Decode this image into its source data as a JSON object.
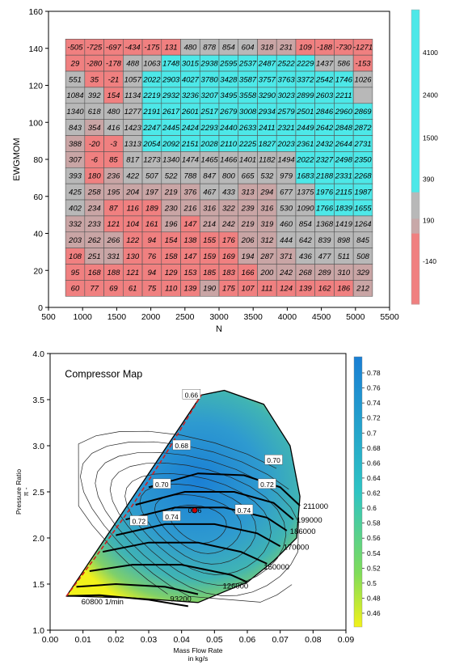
{
  "chart_data": [
    {
      "type": "heatmap",
      "xlabel": "N",
      "ylabel": "EWGMOM",
      "x_ticks": [
        "500",
        "1000",
        "1500",
        "2000",
        "2500",
        "3000",
        "3500",
        "4000",
        "4500",
        "5000",
        "5500"
      ],
      "y_ticks": [
        "0",
        "20",
        "40",
        "60",
        "80",
        "100",
        "120",
        "140",
        "160"
      ],
      "xlim": [
        500,
        5500
      ],
      "ylim": [
        0,
        160
      ],
      "grid_x_range": [
        750,
        5250
      ],
      "grid_y_range": [
        6,
        145
      ],
      "rows": [
        [
          -505,
          -725,
          -697,
          -434,
          -175,
          131,
          480,
          878,
          854,
          604,
          318,
          231,
          109,
          -188,
          -730,
          -1271
        ],
        [
          29,
          -280,
          -178,
          488,
          1063,
          1748,
          3015,
          2938,
          2595,
          2537,
          2487,
          2522,
          2229,
          1437,
          586,
          -153
        ],
        [
          551,
          35,
          -21,
          1057,
          2022,
          2903,
          4027,
          3780,
          3428,
          3587,
          3757,
          3763,
          3372,
          2542,
          1746,
          1026
        ],
        [
          1084,
          392,
          154,
          1134,
          2219,
          2932,
          3236,
          3207,
          3495,
          3558,
          3290,
          3023,
          2899,
          2603,
          2211,
          ""
        ],
        [
          1340,
          618,
          480,
          1277,
          2191,
          2617,
          2601,
          2517,
          2679,
          3008,
          2934,
          2579,
          2501,
          2846,
          2960,
          2869
        ],
        [
          843,
          354,
          416,
          1423,
          2247,
          2445,
          2424,
          2293,
          2440,
          2633,
          2411,
          2321,
          2449,
          2642,
          2848,
          2872
        ],
        [
          388,
          -20,
          -3,
          1313,
          2054,
          2092,
          2151,
          2028,
          2110,
          2225,
          1827,
          2023,
          2361,
          2432,
          2644,
          2731
        ],
        [
          307,
          -6,
          85,
          817,
          1273,
          1340,
          1474,
          1465,
          1466,
          1401,
          1182,
          1494,
          2022,
          2327,
          2498,
          2350
        ],
        [
          393,
          180,
          236,
          422,
          507,
          522,
          788,
          847,
          800,
          665,
          532,
          979,
          1683,
          2188,
          2331,
          2268
        ],
        [
          425,
          258,
          195,
          204,
          197,
          219,
          376,
          467,
          433,
          313,
          294,
          677,
          1375,
          1976,
          2115,
          1987
        ],
        [
          402,
          234,
          87,
          116,
          189,
          230,
          216,
          316,
          322,
          239,
          316,
          530,
          1090,
          1766,
          1839,
          1655
        ],
        [
          332,
          233,
          121,
          104,
          161,
          196,
          147,
          214,
          242,
          219,
          319,
          460,
          854,
          1368,
          1419,
          1264
        ],
        [
          203,
          262,
          266,
          122,
          94,
          154,
          138,
          155,
          176,
          206,
          312,
          444,
          642,
          839,
          898,
          845
        ],
        [
          108,
          251,
          331,
          130,
          76,
          158,
          147,
          159,
          169,
          194,
          287,
          371,
          436,
          477,
          511,
          508
        ],
        [
          95,
          168,
          188,
          121,
          94,
          129,
          153,
          185,
          183,
          166,
          200,
          242,
          268,
          289,
          310,
          329
        ],
        [
          60,
          77,
          69,
          61,
          75,
          110,
          139,
          190,
          175,
          107,
          111,
          124,
          139,
          162,
          186,
          212
        ]
      ],
      "colorbar_labels": [
        "4100",
        "2400",
        "1500",
        "390",
        "190",
        "-140"
      ],
      "colors": {
        "pos": "#4de8e8",
        "mid": "#b8b8b8",
        "neg": "#f08080",
        "low_pos": "#c9a5a5"
      }
    },
    {
      "type": "line",
      "title": "Compressor Map",
      "xlabel": "Mass Flow Rate",
      "xlabel_unit": "in kg/s",
      "ylabel": "Pressure Ratio",
      "ylabel_unit": "π -",
      "xlim": [
        0.0,
        0.09
      ],
      "ylim": [
        1.0,
        4.0
      ],
      "x_ticks": [
        "0.00",
        "0.01",
        "0.02",
        "0.03",
        "0.04",
        "0.05",
        "0.06",
        "0.07",
        "0.08",
        "0.09"
      ],
      "y_ticks": [
        "1.0",
        "1.5",
        "2.0",
        "2.5",
        "3.0",
        "3.5",
        "4.0"
      ],
      "speed_lines": [
        {
          "label": "60800 1/min",
          "points": [
            [
              0.005,
              1.37
            ],
            [
              0.015,
              1.38
            ],
            [
              0.03,
              1.33
            ],
            [
              0.042,
              1.26
            ]
          ]
        },
        {
          "label": "93200",
          "points": [
            [
              0.008,
              1.47
            ],
            [
              0.02,
              1.5
            ],
            [
              0.035,
              1.47
            ],
            [
              0.045,
              1.39
            ]
          ]
        },
        {
          "label": "126000",
          "points": [
            [
              0.012,
              1.64
            ],
            [
              0.025,
              1.71
            ],
            [
              0.04,
              1.71
            ],
            [
              0.055,
              1.6
            ],
            [
              0.06,
              1.52
            ]
          ]
        },
        {
          "label": "150000",
          "points": [
            [
              0.016,
              1.85
            ],
            [
              0.03,
              1.95
            ],
            [
              0.045,
              1.95
            ],
            [
              0.058,
              1.85
            ],
            [
              0.066,
              1.72
            ]
          ]
        },
        {
          "label": "170000",
          "points": [
            [
              0.02,
              2.03
            ],
            [
              0.035,
              2.15
            ],
            [
              0.05,
              2.15
            ],
            [
              0.063,
              2.05
            ],
            [
              0.07,
              1.91
            ]
          ]
        },
        {
          "label": "186000",
          "points": [
            [
              0.023,
              2.2
            ],
            [
              0.038,
              2.33
            ],
            [
              0.053,
              2.33
            ],
            [
              0.066,
              2.22
            ],
            [
              0.072,
              2.08
            ]
          ]
        },
        {
          "label": "199000",
          "points": [
            [
              0.026,
              2.36
            ],
            [
              0.041,
              2.5
            ],
            [
              0.056,
              2.5
            ],
            [
              0.068,
              2.38
            ],
            [
              0.074,
              2.2
            ]
          ]
        },
        {
          "label": "211000",
          "points": [
            [
              0.03,
              2.55
            ],
            [
              0.045,
              2.7
            ],
            [
              0.059,
              2.68
            ],
            [
              0.07,
              2.55
            ],
            [
              0.076,
              2.35
            ]
          ]
        }
      ],
      "surge_line": [
        [
          0.005,
          1.37
        ],
        [
          0.015,
          1.85
        ],
        [
          0.025,
          2.35
        ],
        [
          0.035,
          2.9
        ],
        [
          0.046,
          3.55
        ]
      ],
      "map_outline": [
        [
          0.005,
          1.37
        ],
        [
          0.046,
          3.55
        ],
        [
          0.053,
          3.6
        ],
        [
          0.065,
          3.45
        ],
        [
          0.073,
          3.0
        ],
        [
          0.076,
          2.45
        ],
        [
          0.075,
          2.0
        ],
        [
          0.068,
          1.75
        ],
        [
          0.06,
          1.52
        ],
        [
          0.045,
          1.3
        ],
        [
          0.025,
          1.35
        ],
        [
          0.005,
          1.37
        ]
      ],
      "efficiency_labels": [
        "0.66",
        "0.68",
        "0.70",
        "0.70",
        "0.72",
        "0.72",
        "0.74",
        "0.74",
        "0.76"
      ],
      "efficiency_label_points": [
        [
          0.043,
          3.55
        ],
        [
          0.04,
          3.0
        ],
        [
          0.034,
          2.58
        ],
        [
          0.068,
          2.84
        ],
        [
          0.066,
          2.58
        ],
        [
          0.027,
          2.18
        ],
        [
          0.037,
          2.23
        ],
        [
          0.059,
          2.3
        ],
        [
          0.044,
          2.3
        ]
      ],
      "operating_point": [
        0.044,
        2.3
      ],
      "colorbar_labels": [
        "0.78",
        "0.76",
        "0.74",
        "0.72",
        "0.7",
        "0.68",
        "0.66",
        "0.64",
        "0.62",
        "0.6",
        "0.58",
        "0.56",
        "0.54",
        "0.52",
        "0.5",
        "0.48",
        "0.46"
      ],
      "colors": {
        "efficiency_high": "#1a7fd4",
        "efficiency_mid": "#40b4b4",
        "efficiency_low": "#f2f21a",
        "surge": "#d02020",
        "operating_point": "#cc0000"
      }
    }
  ]
}
